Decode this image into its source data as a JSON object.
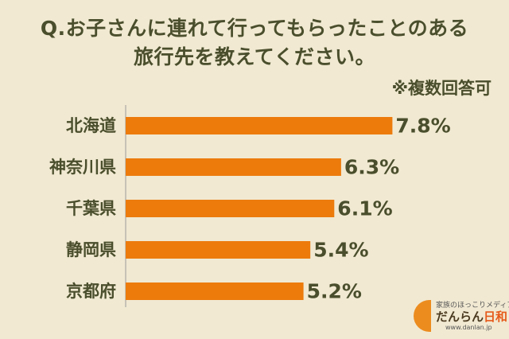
{
  "title": {
    "line1": "Q.お子さんに連れて行ってもらったことのある",
    "line2": "旅行先を教えてください。"
  },
  "note": "※複数回答可",
  "chart_data": {
    "type": "bar",
    "orientation": "horizontal",
    "categories": [
      "北海道",
      "神奈川県",
      "千葉県",
      "静岡県",
      "京都府"
    ],
    "values": [
      7.8,
      6.3,
      6.1,
      5.4,
      5.2
    ],
    "value_labels": [
      "7.8%",
      "6.3%",
      "6.1%",
      "5.4%",
      "5.2%"
    ],
    "unit": "%",
    "xlim": [
      0,
      10
    ],
    "grid": false,
    "bar_color": "#ec7b0c"
  },
  "logo": {
    "tagline": "家族のほっこりメディア",
    "name_main": "だんらん",
    "name_accent": "日和",
    "url": "www.danlan.jp",
    "mark_color": "#ec8c1f"
  }
}
